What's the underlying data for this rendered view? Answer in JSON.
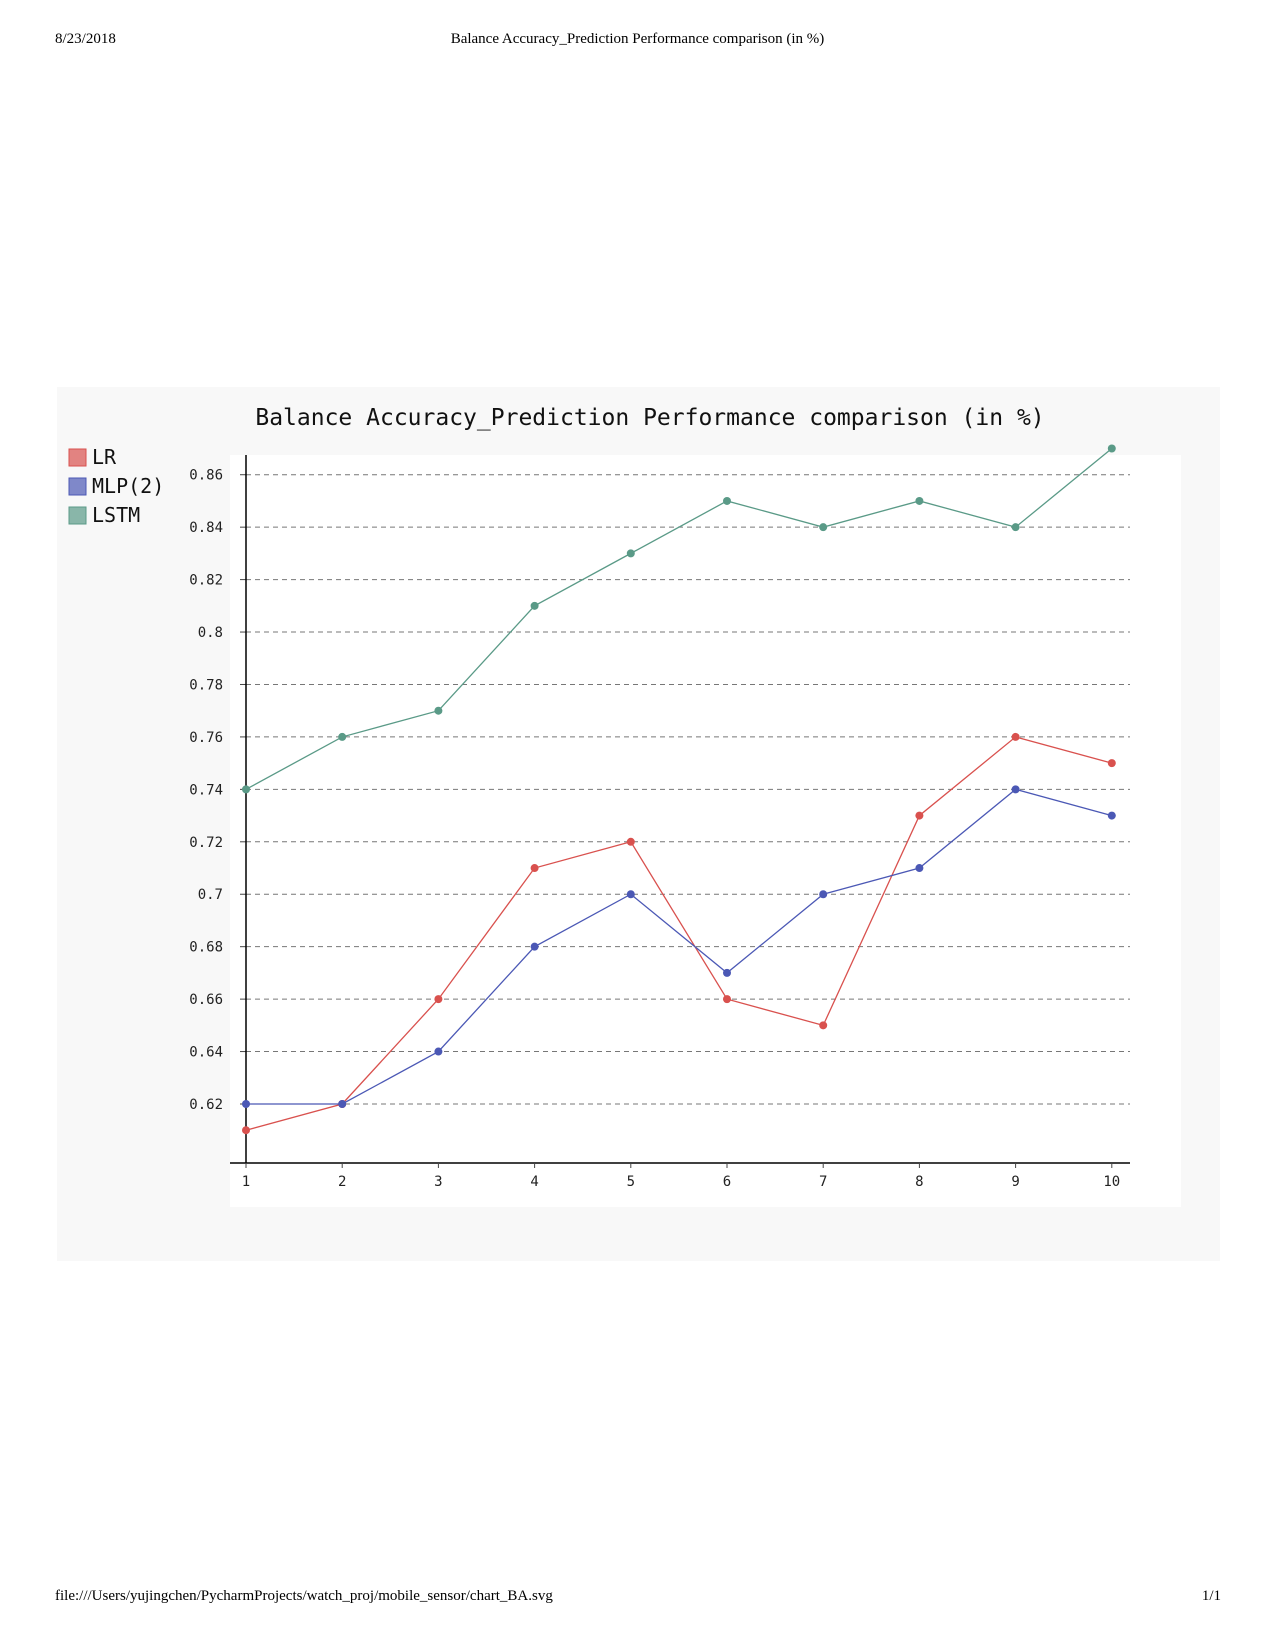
{
  "header": {
    "date": "8/23/2018",
    "title": "Balance Accuracy_Prediction Performance comparison (in %)"
  },
  "footer": {
    "path": "file:///Users/yujingchen/PycharmProjects/watch_proj/mobile_sensor/chart_BA.svg",
    "page": "1/1"
  },
  "chart_data": {
    "type": "line",
    "title": "Balance Accuracy_Prediction Performance comparison (in %)",
    "xlabel": "",
    "ylabel": "",
    "x": [
      1,
      2,
      3,
      4,
      5,
      6,
      7,
      8,
      9,
      10
    ],
    "x_tick_labels": [
      "1",
      "2",
      "3",
      "4",
      "5",
      "6",
      "7",
      "8",
      "9",
      "10"
    ],
    "y_ticks": [
      0.62,
      0.64,
      0.66,
      0.68,
      0.7,
      0.72,
      0.74,
      0.76,
      0.78,
      0.8,
      0.82,
      0.84,
      0.86
    ],
    "y_tick_labels": [
      "0.62",
      "0.64",
      "0.66",
      "0.68",
      "0.7",
      "0.72",
      "0.74",
      "0.76",
      "0.78",
      "0.8",
      "0.82",
      "0.84",
      "0.86"
    ],
    "ylim": [
      0.605,
      0.875
    ],
    "xlim": [
      1,
      10
    ],
    "grid": true,
    "grid_style": "dashed-horizontal",
    "legend_position": "top-left",
    "series": [
      {
        "name": "LR",
        "color": "#d9514e",
        "values": [
          0.61,
          0.62,
          0.66,
          0.71,
          0.72,
          0.66,
          0.65,
          0.73,
          0.76,
          0.75
        ]
      },
      {
        "name": "MLP(2)",
        "color": "#4b58b5",
        "values": [
          0.62,
          0.62,
          0.64,
          0.68,
          0.7,
          0.67,
          0.7,
          0.71,
          0.74,
          0.73
        ]
      },
      {
        "name": "LSTM",
        "color": "#5a9a87",
        "values": [
          0.74,
          0.76,
          0.77,
          0.81,
          0.83,
          0.85,
          0.84,
          0.85,
          0.84,
          0.87
        ]
      }
    ]
  }
}
